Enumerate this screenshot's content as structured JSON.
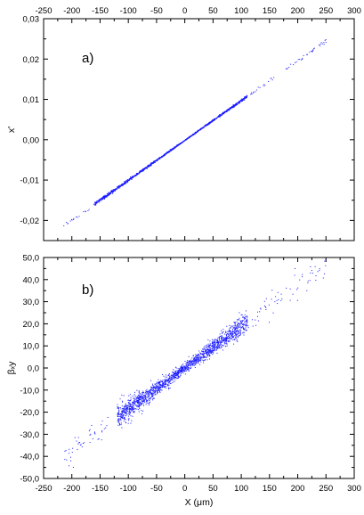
{
  "chart_data": [
    {
      "type": "scatter",
      "panel_label": "a)",
      "ylabel": "x'",
      "xlabel": "",
      "xlim": [
        -250,
        300
      ],
      "ylim": [
        -0.025,
        0.03
      ],
      "x_ticks": [
        -250,
        -200,
        -150,
        -100,
        -50,
        0,
        50,
        100,
        150,
        200,
        250,
        300
      ],
      "x_tick_labels": [
        "-250",
        "-200",
        "-150",
        "-100",
        "-50",
        "0",
        "50",
        "100",
        "150",
        "200",
        "250",
        "300"
      ],
      "y_ticks": [
        -0.02,
        -0.01,
        0.0,
        0.01,
        0.02,
        0.03
      ],
      "y_tick_labels": [
        "-0,02",
        "-0,01",
        "0,00",
        "0,01",
        "0,02",
        "0,03"
      ],
      "x_tick_labels_top": true,
      "x_tick_labels_bottom": false,
      "grid": false,
      "marker_color": "#1a1aff",
      "series": [
        {
          "slope": 9.88e-05,
          "intercept": 0.0,
          "x_range": [
            -215,
            250
          ],
          "core_range": [
            -160,
            110
          ],
          "spread": 0.00012,
          "points": 1400,
          "seed": 11
        }
      ]
    },
    {
      "type": "scatter",
      "panel_label": "b)",
      "ylabel": "βₓy",
      "xlabel": "X (μm)",
      "xlim": [
        -250,
        300
      ],
      "ylim": [
        -50,
        50
      ],
      "x_ticks": [
        -250,
        -200,
        -150,
        -100,
        -50,
        0,
        50,
        100,
        150,
        200,
        250,
        300
      ],
      "x_tick_labels": [
        "-250",
        "-200",
        "-150",
        "-100",
        "-50",
        "0",
        "50",
        "100",
        "150",
        "200",
        "250",
        "300"
      ],
      "y_ticks": [
        -50,
        -40,
        -30,
        -20,
        -10,
        0,
        10,
        20,
        30,
        40,
        50
      ],
      "y_tick_labels": [
        "-50,0",
        "-40,0",
        "-30,0",
        "-20,0",
        "-10,0",
        "0,0",
        "10,0",
        "20,0",
        "30,0",
        "40,0",
        "50,0"
      ],
      "x_tick_labels_top": false,
      "x_tick_labels_bottom": true,
      "grid": false,
      "marker_color": "#1a1aff",
      "series": [
        {
          "slope": 0.187,
          "intercept": 0.3,
          "x_range": [
            -215,
            250
          ],
          "core_range": [
            -120,
            110
          ],
          "spread": 1.8,
          "points": 1800,
          "seed": 23
        }
      ]
    }
  ]
}
